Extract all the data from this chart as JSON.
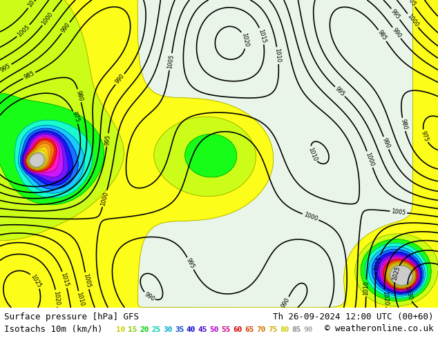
{
  "title_left": "Surface pressure [hPa] GFS",
  "title_right": "Th 26-09-2024 12:00 UTC (00+60)",
  "subtitle_left": "Isotachs 10m (km/h)",
  "isotach_labels": [
    "10",
    "15",
    "20",
    "25",
    "30",
    "35",
    "40",
    "45",
    "50",
    "55",
    "60",
    "65",
    "70",
    "75",
    "80",
    "85",
    "90"
  ],
  "isotach_colors": [
    "#ffff00",
    "#c8ff00",
    "#00ff00",
    "#00ffc8",
    "#00c8ff",
    "#0064ff",
    "#0000ff",
    "#6400ff",
    "#c800ff",
    "#ff00c8",
    "#ff0000",
    "#ff6400",
    "#ff9600",
    "#ffc800",
    "#ffff00",
    "#c8c8c8",
    "#ffffff"
  ],
  "copyright": "© weatheronline.co.uk",
  "bg_color": "#ffffff",
  "map_bg": "#e8f5e8",
  "title_color": "#000000",
  "title_fontsize": 9,
  "subtitle_fontsize": 9,
  "label_fontsize": 8,
  "fig_width": 6.34,
  "fig_height": 4.9,
  "dpi": 100
}
